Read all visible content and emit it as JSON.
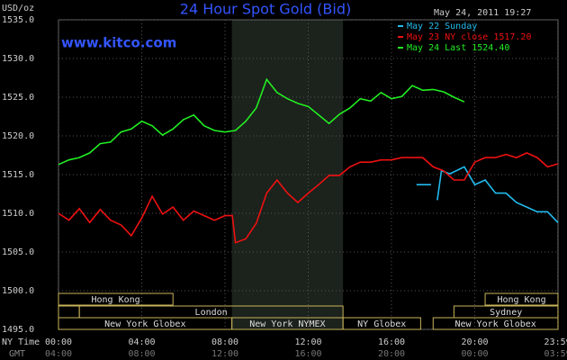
{
  "chart_data": {
    "type": "line",
    "title": "24 Hour Spot Gold (Bid)",
    "subtitle": "www.kitco.com",
    "timestamp": "May 24, 2011 19:27",
    "ylabel": "USD/oz",
    "xlabel": "NY Time",
    "x2label": "GMT",
    "ylim": [
      1495,
      1535
    ],
    "yticks": [
      {
        "value": 1495,
        "label": "1495.0"
      },
      {
        "value": 1500,
        "label": "1500.0"
      },
      {
        "value": 1505,
        "label": "1505.0"
      },
      {
        "value": 1510,
        "label": "1510.0"
      },
      {
        "value": 1515,
        "label": "1515.0"
      },
      {
        "value": 1520,
        "label": "1520.0"
      },
      {
        "value": 1525,
        "label": "1525.0"
      },
      {
        "value": 1530,
        "label": "1530.0"
      },
      {
        "value": 1535,
        "label": "1535.0"
      }
    ],
    "xlim": [
      0,
      24
    ],
    "xticks": [
      {
        "value": 0,
        "label": "00:00"
      },
      {
        "value": 4,
        "label": "04:00"
      },
      {
        "value": 8,
        "label": "08:00"
      },
      {
        "value": 12,
        "label": "12:00"
      },
      {
        "value": 16,
        "label": "16:00"
      },
      {
        "value": 20,
        "label": "20:00"
      },
      {
        "value": 23.983,
        "label": "23:59"
      }
    ],
    "x2ticks": [
      {
        "value": 0,
        "label": "04:00"
      },
      {
        "value": 4,
        "label": "08:00"
      },
      {
        "value": 8,
        "label": "12:00"
      },
      {
        "value": 12,
        "label": "16:00"
      },
      {
        "value": 16,
        "label": "20:00"
      },
      {
        "value": 20,
        "label": "00:00"
      },
      {
        "value": 23.983,
        "label": "03:59"
      }
    ],
    "grid": true,
    "highlight": [
      8.33,
      13.67
    ],
    "sessions": [
      {
        "name": "Hong Kong",
        "row": 1,
        "start": 0,
        "end": 5.5
      },
      {
        "name": "Hong Kong",
        "row": 1,
        "start": 20.5,
        "end": 24
      },
      {
        "name": null,
        "row": 2,
        "start": 0,
        "end": 1
      },
      {
        "name": "London",
        "row": 2,
        "start": 1,
        "end": 13.67
      },
      {
        "name": "Sydney",
        "row": 2,
        "start": 19,
        "end": 24
      },
      {
        "name": "New York Globex",
        "row": 3,
        "start": 0,
        "end": 8.33
      },
      {
        "name": "New York NYMEX",
        "row": 3,
        "start": 8.33,
        "end": 13.67
      },
      {
        "name": "NY Globex",
        "row": 3,
        "start": 13.67,
        "end": 17.4
      },
      {
        "name": "New York Globex",
        "row": 3,
        "start": 18,
        "end": 24
      }
    ],
    "series": [
      {
        "name": "May 22 Sunday",
        "color": "#22bbee",
        "x": [
          17.2,
          17.9,
          null,
          18.2,
          18.4,
          18.8,
          19.5,
          20,
          20.5,
          21,
          21.5,
          22,
          22.5,
          23,
          23.5,
          24
        ],
        "values": [
          1513.7,
          1513.7,
          null,
          1511.7,
          1515.5,
          1515.1,
          1516.0,
          1513.7,
          1514.3,
          1512.6,
          1512.6,
          1511.4,
          1510.8,
          1510.2,
          1510.2,
          1508.8
        ]
      },
      {
        "name": "May 23 NY close 1517.20",
        "color": "#ee1111",
        "x": [
          0,
          0.5,
          1,
          1.5,
          2,
          2.5,
          3,
          3.5,
          4,
          4.5,
          5,
          5.5,
          6,
          6.5,
          7,
          7.5,
          8,
          8.35,
          8.5,
          9,
          9.5,
          10,
          10.5,
          11,
          11.5,
          12,
          12.5,
          13,
          13.5,
          14,
          14.5,
          15,
          15.5,
          16,
          16.5,
          17,
          17.5,
          18,
          18.5,
          19,
          19.5,
          20,
          20.5,
          21,
          21.5,
          22,
          22.5,
          23,
          23.5,
          24
        ],
        "values": [
          1510.0,
          1509.1,
          1510.6,
          1508.8,
          1510.5,
          1509.1,
          1508.5,
          1507.1,
          1509.4,
          1512.2,
          1509.9,
          1510.8,
          1509.1,
          1510.3,
          1509.7,
          1509.1,
          1509.7,
          1509.7,
          1506.2,
          1506.7,
          1508.7,
          1512.6,
          1514.3,
          1512.6,
          1511.4,
          1512.6,
          1513.7,
          1514.9,
          1514.9,
          1516.0,
          1516.6,
          1516.6,
          1516.9,
          1516.9,
          1517.2,
          1517.2,
          1517.2,
          1516.0,
          1515.5,
          1514.3,
          1514.3,
          1516.6,
          1517.2,
          1517.2,
          1517.6,
          1517.2,
          1517.8,
          1517.2,
          1516.0,
          1516.4
        ]
      },
      {
        "name": "May 24 Last 1524.40",
        "color": "#22ee22",
        "x": [
          0,
          0.5,
          1,
          1.5,
          2,
          2.5,
          3,
          3.5,
          4,
          4.5,
          5,
          5.5,
          6,
          6.5,
          7,
          7.5,
          8,
          8.5,
          9,
          9.5,
          10,
          10.5,
          11,
          11.5,
          12,
          12.5,
          13,
          13.5,
          14,
          14.5,
          15,
          15.5,
          16,
          16.5,
          17,
          17.5,
          18,
          18.5,
          19,
          19.5
        ],
        "values": [
          1516.3,
          1516.9,
          1517.2,
          1517.8,
          1519.0,
          1519.2,
          1520.5,
          1520.9,
          1521.9,
          1521.3,
          1520.1,
          1520.9,
          1522.1,
          1522.7,
          1521.3,
          1520.7,
          1520.5,
          1520.7,
          1521.9,
          1523.6,
          1527.3,
          1525.6,
          1524.8,
          1524.2,
          1523.8,
          1522.7,
          1521.6,
          1522.8,
          1523.6,
          1524.8,
          1524.5,
          1525.6,
          1524.8,
          1525.1,
          1526.5,
          1525.9,
          1526.0,
          1525.7,
          1525.0,
          1524.4
        ]
      }
    ]
  }
}
